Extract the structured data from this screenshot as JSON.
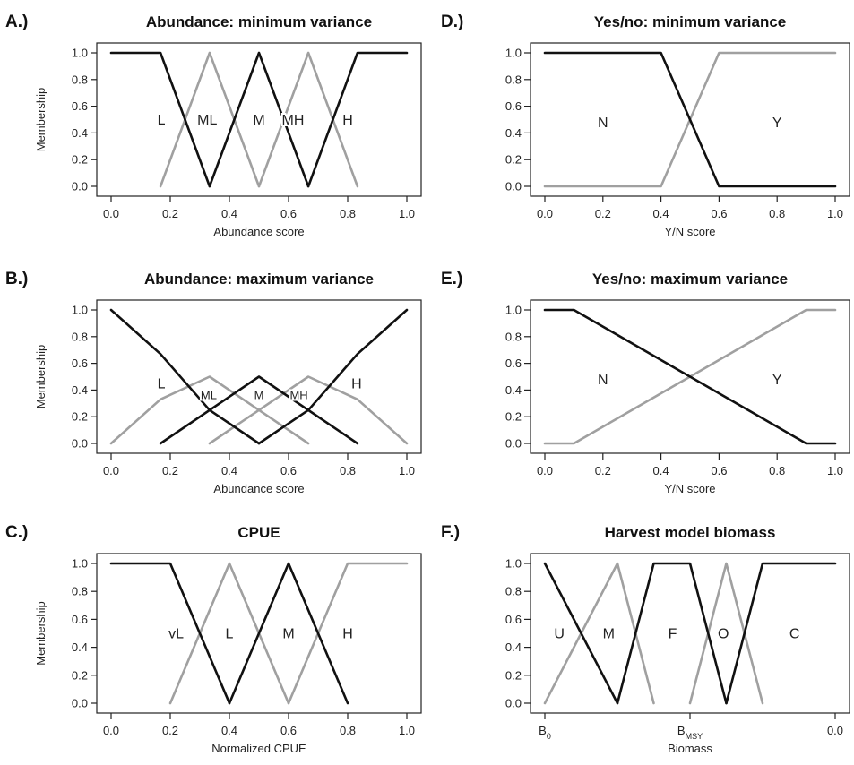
{
  "chart_data": [
    {
      "panel": "A.)",
      "type": "line",
      "title": "Abundance: minimum variance",
      "xlabel": "Abundance score",
      "ylabel": "Membership",
      "xlim": [
        0,
        1
      ],
      "ylim": [
        0,
        1
      ],
      "xticks": [
        "0.0",
        "0.2",
        "0.4",
        "0.6",
        "0.8",
        "1.0"
      ],
      "yticks": [
        "0.0",
        "0.2",
        "0.4",
        "0.6",
        "0.8",
        "1.0"
      ],
      "series": [
        {
          "color": "#111111",
          "x": [
            0,
            0.167,
            0.333
          ],
          "y": [
            1,
            1,
            0
          ]
        },
        {
          "color": "#a0a0a0",
          "x": [
            0.167,
            0.333,
            0.5
          ],
          "y": [
            0,
            1,
            0
          ]
        },
        {
          "color": "#111111",
          "x": [
            0.333,
            0.5,
            0.667
          ],
          "y": [
            0,
            1,
            0
          ]
        },
        {
          "color": "#a0a0a0",
          "x": [
            0.5,
            0.667,
            0.833
          ],
          "y": [
            0,
            1,
            0
          ]
        },
        {
          "color": "#111111",
          "x": [
            0.667,
            0.833,
            1.0
          ],
          "y": [
            0,
            1,
            1
          ]
        }
      ],
      "labels": [
        {
          "text": "L",
          "x": 0.17,
          "y": 0.5
        },
        {
          "text": "ML",
          "x": 0.325,
          "y": 0.5
        },
        {
          "text": "M",
          "x": 0.5,
          "y": 0.5
        },
        {
          "text": "MH",
          "x": 0.615,
          "y": 0.5
        },
        {
          "text": "H",
          "x": 0.8,
          "y": 0.5
        }
      ]
    },
    {
      "panel": "B.)",
      "type": "line",
      "title": "Abundance: maximum variance",
      "xlabel": "Abundance score",
      "ylabel": "Membership",
      "xlim": [
        0,
        1
      ],
      "ylim": [
        0,
        1
      ],
      "xticks": [
        "0.0",
        "0.2",
        "0.4",
        "0.6",
        "0.8",
        "1.0"
      ],
      "yticks": [
        "0.0",
        "0.2",
        "0.4",
        "0.6",
        "0.8",
        "1.0"
      ],
      "series": [
        {
          "color": "#111111",
          "x": [
            0,
            0.167,
            0.333,
            0.5
          ],
          "y": [
            1,
            0.67,
            0.25,
            0
          ]
        },
        {
          "color": "#a0a0a0",
          "x": [
            0,
            0.167,
            0.333,
            0.5,
            0.667
          ],
          "y": [
            0,
            0.33,
            0.5,
            0.25,
            0
          ]
        },
        {
          "color": "#111111",
          "x": [
            0.167,
            0.5,
            0.833
          ],
          "y": [
            0,
            0.5,
            0
          ]
        },
        {
          "color": "#a0a0a0",
          "x": [
            0.333,
            0.5,
            0.667,
            0.833,
            1.0
          ],
          "y": [
            0,
            0.25,
            0.5,
            0.33,
            0
          ]
        },
        {
          "color": "#111111",
          "x": [
            0.5,
            0.667,
            0.833,
            1.0
          ],
          "y": [
            0,
            0.25,
            0.67,
            1
          ]
        }
      ],
      "labels": [
        {
          "text": "L",
          "x": 0.17,
          "y": 0.45
        },
        {
          "text": "ML",
          "x": 0.33,
          "y": 0.37,
          "small": true
        },
        {
          "text": "M",
          "x": 0.5,
          "y": 0.37,
          "small": true
        },
        {
          "text": "MH",
          "x": 0.635,
          "y": 0.37,
          "small": true
        },
        {
          "text": "H",
          "x": 0.83,
          "y": 0.45
        }
      ]
    },
    {
      "panel": "C.)",
      "type": "line",
      "title": "CPUE",
      "xlabel": "Normalized CPUE",
      "ylabel": "Membership",
      "xlim": [
        0,
        1
      ],
      "ylim": [
        0,
        1
      ],
      "xticks": [
        "0.0",
        "0.2",
        "0.4",
        "0.6",
        "0.8",
        "1.0"
      ],
      "yticks": [
        "0.0",
        "0.2",
        "0.4",
        "0.6",
        "0.8",
        "1.0"
      ],
      "series": [
        {
          "color": "#111111",
          "x": [
            0,
            0.2,
            0.4
          ],
          "y": [
            1,
            1,
            0
          ]
        },
        {
          "color": "#a0a0a0",
          "x": [
            0.2,
            0.4,
            0.6
          ],
          "y": [
            0,
            1,
            0
          ]
        },
        {
          "color": "#111111",
          "x": [
            0.4,
            0.6,
            0.8
          ],
          "y": [
            0,
            1,
            0
          ]
        },
        {
          "color": "#a0a0a0",
          "x": [
            0.6,
            0.8,
            1.0
          ],
          "y": [
            0,
            1,
            1
          ]
        }
      ],
      "labels": [
        {
          "text": "vL",
          "x": 0.22,
          "y": 0.5
        },
        {
          "text": "L",
          "x": 0.4,
          "y": 0.5
        },
        {
          "text": "M",
          "x": 0.6,
          "y": 0.5
        },
        {
          "text": "H",
          "x": 0.8,
          "y": 0.5
        }
      ]
    },
    {
      "panel": "D.)",
      "type": "line",
      "title": "Yes/no: minimum variance",
      "xlabel": "Y/N score",
      "ylabel": "",
      "xlim": [
        0,
        1
      ],
      "ylim": [
        0,
        1
      ],
      "xticks": [
        "0.0",
        "0.2",
        "0.4",
        "0.6",
        "0.8",
        "1.0"
      ],
      "yticks": [
        "0.0",
        "0.2",
        "0.4",
        "0.6",
        "0.8",
        "1.0"
      ],
      "series": [
        {
          "color": "#111111",
          "x": [
            0,
            0.4,
            0.6,
            1.0
          ],
          "y": [
            1,
            1,
            0,
            0
          ]
        },
        {
          "color": "#a0a0a0",
          "x": [
            0,
            0.4,
            0.6,
            1.0
          ],
          "y": [
            0,
            0,
            1,
            1
          ]
        }
      ],
      "labels": [
        {
          "text": "N",
          "x": 0.2,
          "y": 0.48
        },
        {
          "text": "Y",
          "x": 0.8,
          "y": 0.48
        }
      ]
    },
    {
      "panel": "E.)",
      "type": "line",
      "title": "Yes/no: maximum variance",
      "xlabel": "Y/N score",
      "ylabel": "",
      "xlim": [
        0,
        1
      ],
      "ylim": [
        0,
        1
      ],
      "xticks": [
        "0.0",
        "0.2",
        "0.4",
        "0.6",
        "0.8",
        "1.0"
      ],
      "yticks": [
        "0.0",
        "0.2",
        "0.4",
        "0.6",
        "0.8",
        "1.0"
      ],
      "series": [
        {
          "color": "#111111",
          "x": [
            0,
            0.1,
            0.9,
            1.0
          ],
          "y": [
            1,
            1,
            0,
            0
          ]
        },
        {
          "color": "#a0a0a0",
          "x": [
            0,
            0.1,
            0.9,
            1.0
          ],
          "y": [
            0,
            0,
            1,
            1
          ]
        }
      ],
      "labels": [
        {
          "text": "N",
          "x": 0.2,
          "y": 0.48
        },
        {
          "text": "Y",
          "x": 0.8,
          "y": 0.48
        }
      ]
    },
    {
      "panel": "F.)",
      "type": "line",
      "title": "Harvest model biomass",
      "xlabel": "Biomass",
      "ylabel": "",
      "xlim": [
        0,
        1
      ],
      "ylim": [
        0,
        1
      ],
      "xtick_labels": [
        {
          "text": "B",
          "sub": "0",
          "x": 0
        },
        {
          "text": "B",
          "sub": "MSY",
          "x": 0.5
        },
        {
          "text": "0.0",
          "sub": "",
          "x": 1
        }
      ],
      "yticks": [
        "0.0",
        "0.2",
        "0.4",
        "0.6",
        "0.8",
        "1.0"
      ],
      "series": [
        {
          "color": "#111111",
          "x": [
            0,
            0.25
          ],
          "y": [
            1,
            0
          ]
        },
        {
          "color": "#a0a0a0",
          "x": [
            0,
            0.25,
            0.375
          ],
          "y": [
            0,
            1,
            0
          ]
        },
        {
          "color": "#111111",
          "x": [
            0.25,
            0.375,
            0.5,
            0.625
          ],
          "y": [
            0,
            1,
            1,
            0
          ]
        },
        {
          "color": "#a0a0a0",
          "x": [
            0.5,
            0.625,
            0.75
          ],
          "y": [
            0,
            1,
            0
          ]
        },
        {
          "color": "#111111",
          "x": [
            0.625,
            0.75,
            1.0
          ],
          "y": [
            0,
            1,
            1
          ]
        }
      ],
      "labels": [
        {
          "text": "U",
          "x": 0.05,
          "y": 0.5
        },
        {
          "text": "M",
          "x": 0.22,
          "y": 0.5
        },
        {
          "text": "F",
          "x": 0.44,
          "y": 0.5
        },
        {
          "text": "O",
          "x": 0.615,
          "y": 0.5
        },
        {
          "text": "C",
          "x": 0.86,
          "y": 0.5
        }
      ]
    }
  ]
}
